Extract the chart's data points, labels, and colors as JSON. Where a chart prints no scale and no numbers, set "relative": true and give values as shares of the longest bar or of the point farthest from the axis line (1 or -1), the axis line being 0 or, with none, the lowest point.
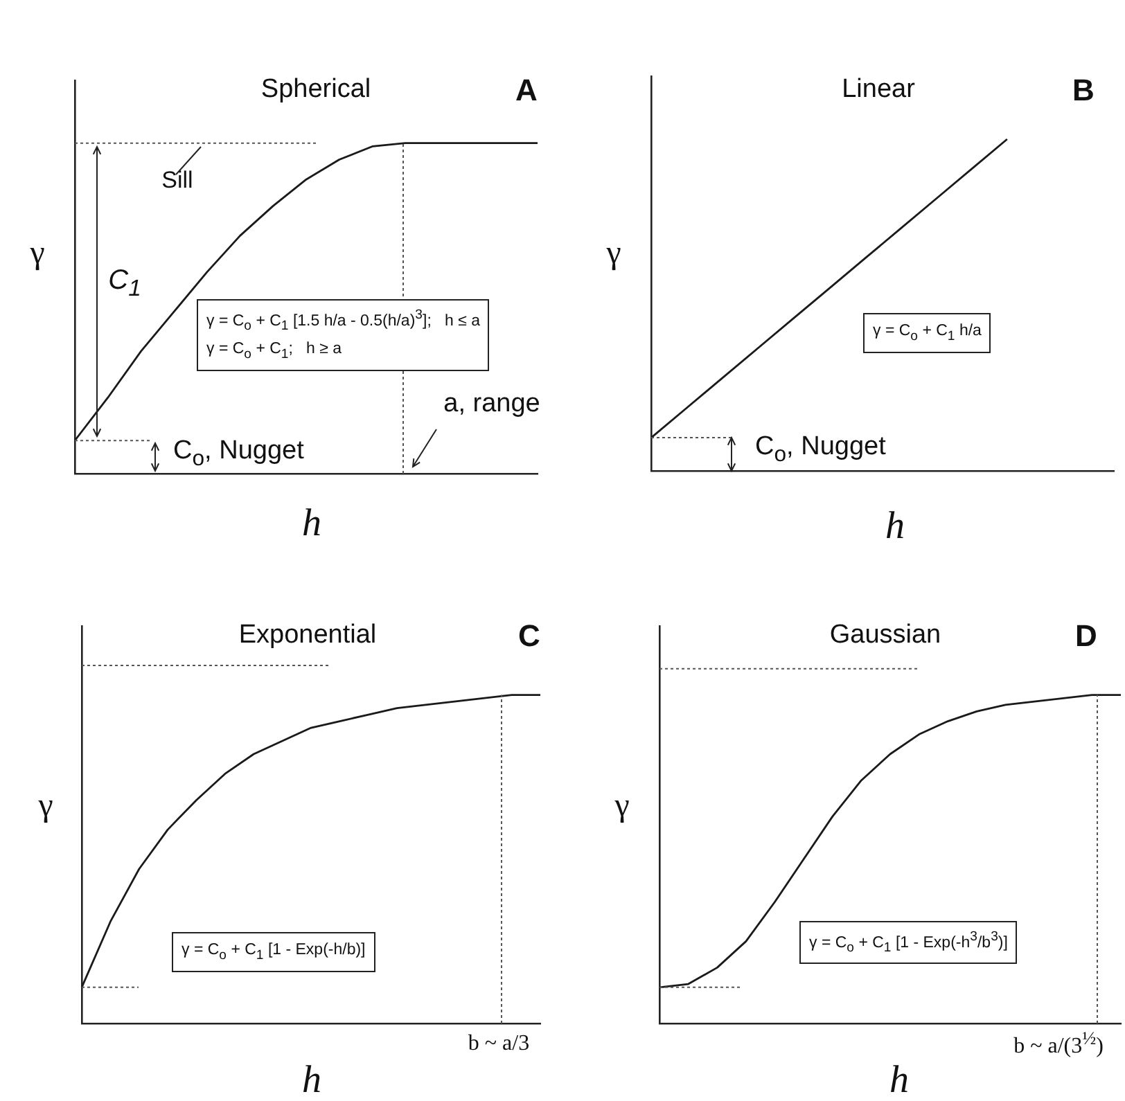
{
  "chart_data": [
    {
      "type": "line",
      "title": "Spherical",
      "xlabel": "h",
      "ylabel": "γ",
      "relative": true,
      "categories": [
        null,
        null,
        null,
        null,
        null,
        null,
        null,
        null,
        null,
        null,
        null,
        null,
        null,
        null,
        null
      ],
      "series": [
        {
          "color": "#1a1a1a",
          "values": [
            0.1,
            0.23,
            0.37,
            0.49,
            0.61,
            0.72,
            0.81,
            0.89,
            0.95,
            0.99,
            1,
            1,
            1,
            1,
            1
          ]
        }
      ],
      "ref_lines": [
        {
          "axis": "y",
          "value": 1,
          "line_style": "dotted"
        },
        {
          "axis": "y",
          "value": 0.1,
          "line_style": "dotted"
        }
      ],
      "annotations": [
        "A",
        "Sill",
        "C$_{1}$",
        "γ = C$_{o}$ + C$_{1}$ [1.5 h/a - 0.5(h/a)$^{3}$];   h ≤ a\nγ = C$_{o}$ + C$_{1}$;   h ≥ a",
        "C$_{o}$, Nugget",
        "a, range"
      ]
    },
    {
      "type": "line",
      "title": "Linear",
      "xlabel": "h",
      "ylabel": "γ",
      "relative": true,
      "categories": [
        null,
        null,
        null,
        null,
        null,
        null,
        null,
        null,
        null,
        null,
        null,
        null,
        null,
        null
      ],
      "series": [
        {
          "color": "#1a1a1a",
          "values": [
            0.1,
            0.19,
            0.28,
            0.37,
            0.46,
            0.55,
            0.64,
            0.73,
            0.82,
            0.91,
            1,
            null,
            null,
            null
          ]
        }
      ],
      "ref_lines": [
        {
          "axis": "y",
          "value": 0.1,
          "line_style": "dotted"
        }
      ],
      "annotations": [
        "B",
        "γ = C$_{o}$ + C$_{1}$ h/a",
        "C$_{o}$, Nugget"
      ]
    },
    {
      "type": "line",
      "title": "Exponential",
      "xlabel": "h",
      "ylabel": "γ",
      "relative": true,
      "categories": [
        null,
        null,
        null,
        null,
        null,
        null,
        null,
        null,
        null,
        null,
        null,
        null,
        null,
        null,
        null,
        null,
        null
      ],
      "series": [
        {
          "color": "#1a1a1a",
          "values": [
            0.11,
            0.31,
            0.47,
            0.59,
            0.68,
            0.76,
            0.82,
            0.86,
            0.9,
            0.92,
            0.94,
            0.96,
            0.97,
            0.98,
            0.99,
            1,
            1
          ]
        }
      ],
      "ref_lines": [
        {
          "axis": "y",
          "value": 1.09,
          "line_style": "dotted"
        },
        {
          "axis": "y",
          "value": 0.11,
          "line_style": "dotted"
        }
      ],
      "annotations": [
        "C",
        "γ = C$_{o}$ + C$_{1}$ [1 - Exp(-h/b)]",
        "b ~ a/3"
      ]
    },
    {
      "type": "line",
      "title": "Gaussian",
      "xlabel": "h",
      "ylabel": "γ",
      "relative": true,
      "categories": [
        null,
        null,
        null,
        null,
        null,
        null,
        null,
        null,
        null,
        null,
        null,
        null,
        null,
        null,
        null,
        null,
        null
      ],
      "series": [
        {
          "color": "#1a1a1a",
          "values": [
            0.11,
            0.12,
            0.17,
            0.25,
            0.37,
            0.5,
            0.63,
            0.74,
            0.82,
            0.88,
            0.92,
            0.95,
            0.97,
            0.98,
            0.99,
            1,
            1
          ]
        }
      ],
      "ref_lines": [
        {
          "axis": "y",
          "value": 1.08,
          "line_style": "dotted"
        },
        {
          "axis": "y",
          "value": 0.11,
          "line_style": "dotted"
        }
      ],
      "annotations": [
        "D",
        "γ = C$_{o}$ + C$_{1}$ [1 - Exp(-h$^{3}$/b$^{3}$)]",
        "b ~ a/(3$^{½}$)"
      ]
    }
  ]
}
